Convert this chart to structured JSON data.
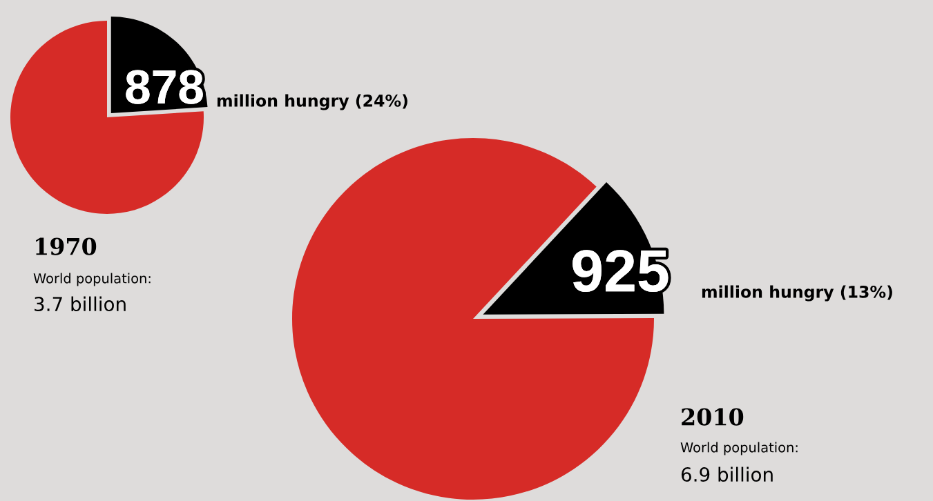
{
  "chart_data": [
    {
      "type": "pie",
      "categories": [
        null,
        null
      ],
      "values": [
        24,
        76
      ],
      "colors": [
        "#000000",
        "#d62b27"
      ],
      "annotations": [
        "878",
        "million hungry (24%)",
        "1970",
        "World population:",
        "3.7 billion"
      ]
    },
    {
      "type": "pie",
      "categories": [
        null,
        null
      ],
      "values": [
        13,
        87
      ],
      "colors": [
        "#000000",
        "#d62b27"
      ],
      "annotations": [
        "925",
        "million hungry (13%)",
        "2010",
        "World population:",
        "6.9 billion"
      ]
    }
  ]
}
